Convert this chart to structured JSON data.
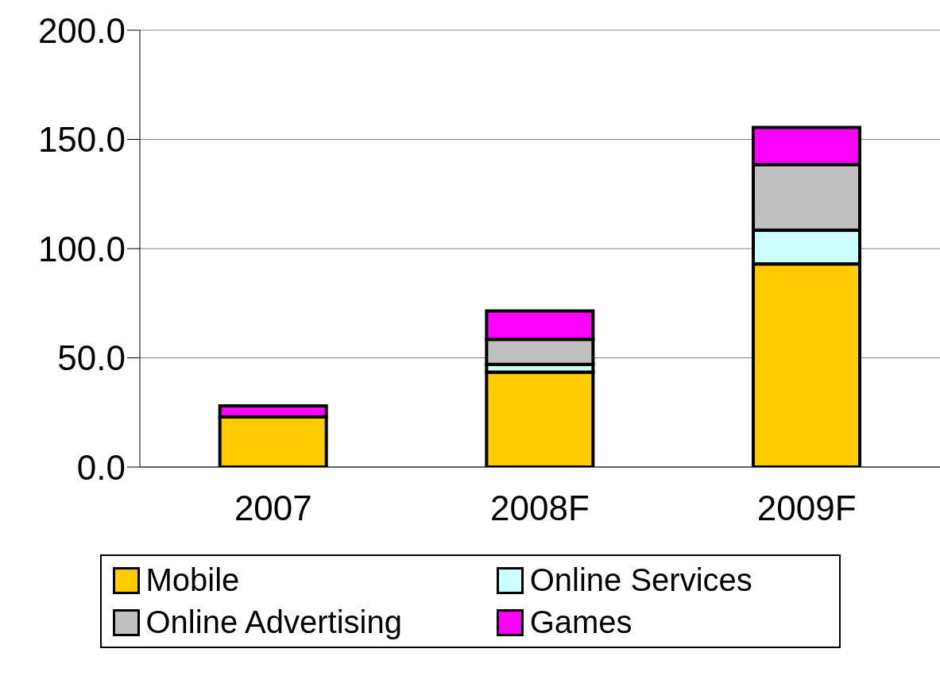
{
  "chart_data": {
    "type": "bar",
    "stacked": true,
    "categories": [
      "2007",
      "2008F",
      "2009F"
    ],
    "series": [
      {
        "name": "Mobile",
        "color": "#ffcc00",
        "values": [
          23,
          43.5,
          93
        ]
      },
      {
        "name": "Online Services",
        "color": "#ccffff",
        "values": [
          null,
          3.5,
          15.5
        ]
      },
      {
        "name": "Online Advertising",
        "color": "#c0c0c0",
        "values": [
          null,
          11.5,
          30
        ]
      },
      {
        "name": "Games",
        "color": "#ff00ff",
        "values": [
          5,
          13,
          17
        ]
      }
    ],
    "ylim": [
      0,
      200
    ],
    "yticks": [
      {
        "value": 0,
        "label": "0.0"
      },
      {
        "value": 50,
        "label": "50.0"
      },
      {
        "value": 100,
        "label": "100.0"
      },
      {
        "value": 150,
        "label": "150.0"
      },
      {
        "value": 200,
        "label": "200.0"
      }
    ],
    "grid": "y",
    "legend": "bottom"
  }
}
